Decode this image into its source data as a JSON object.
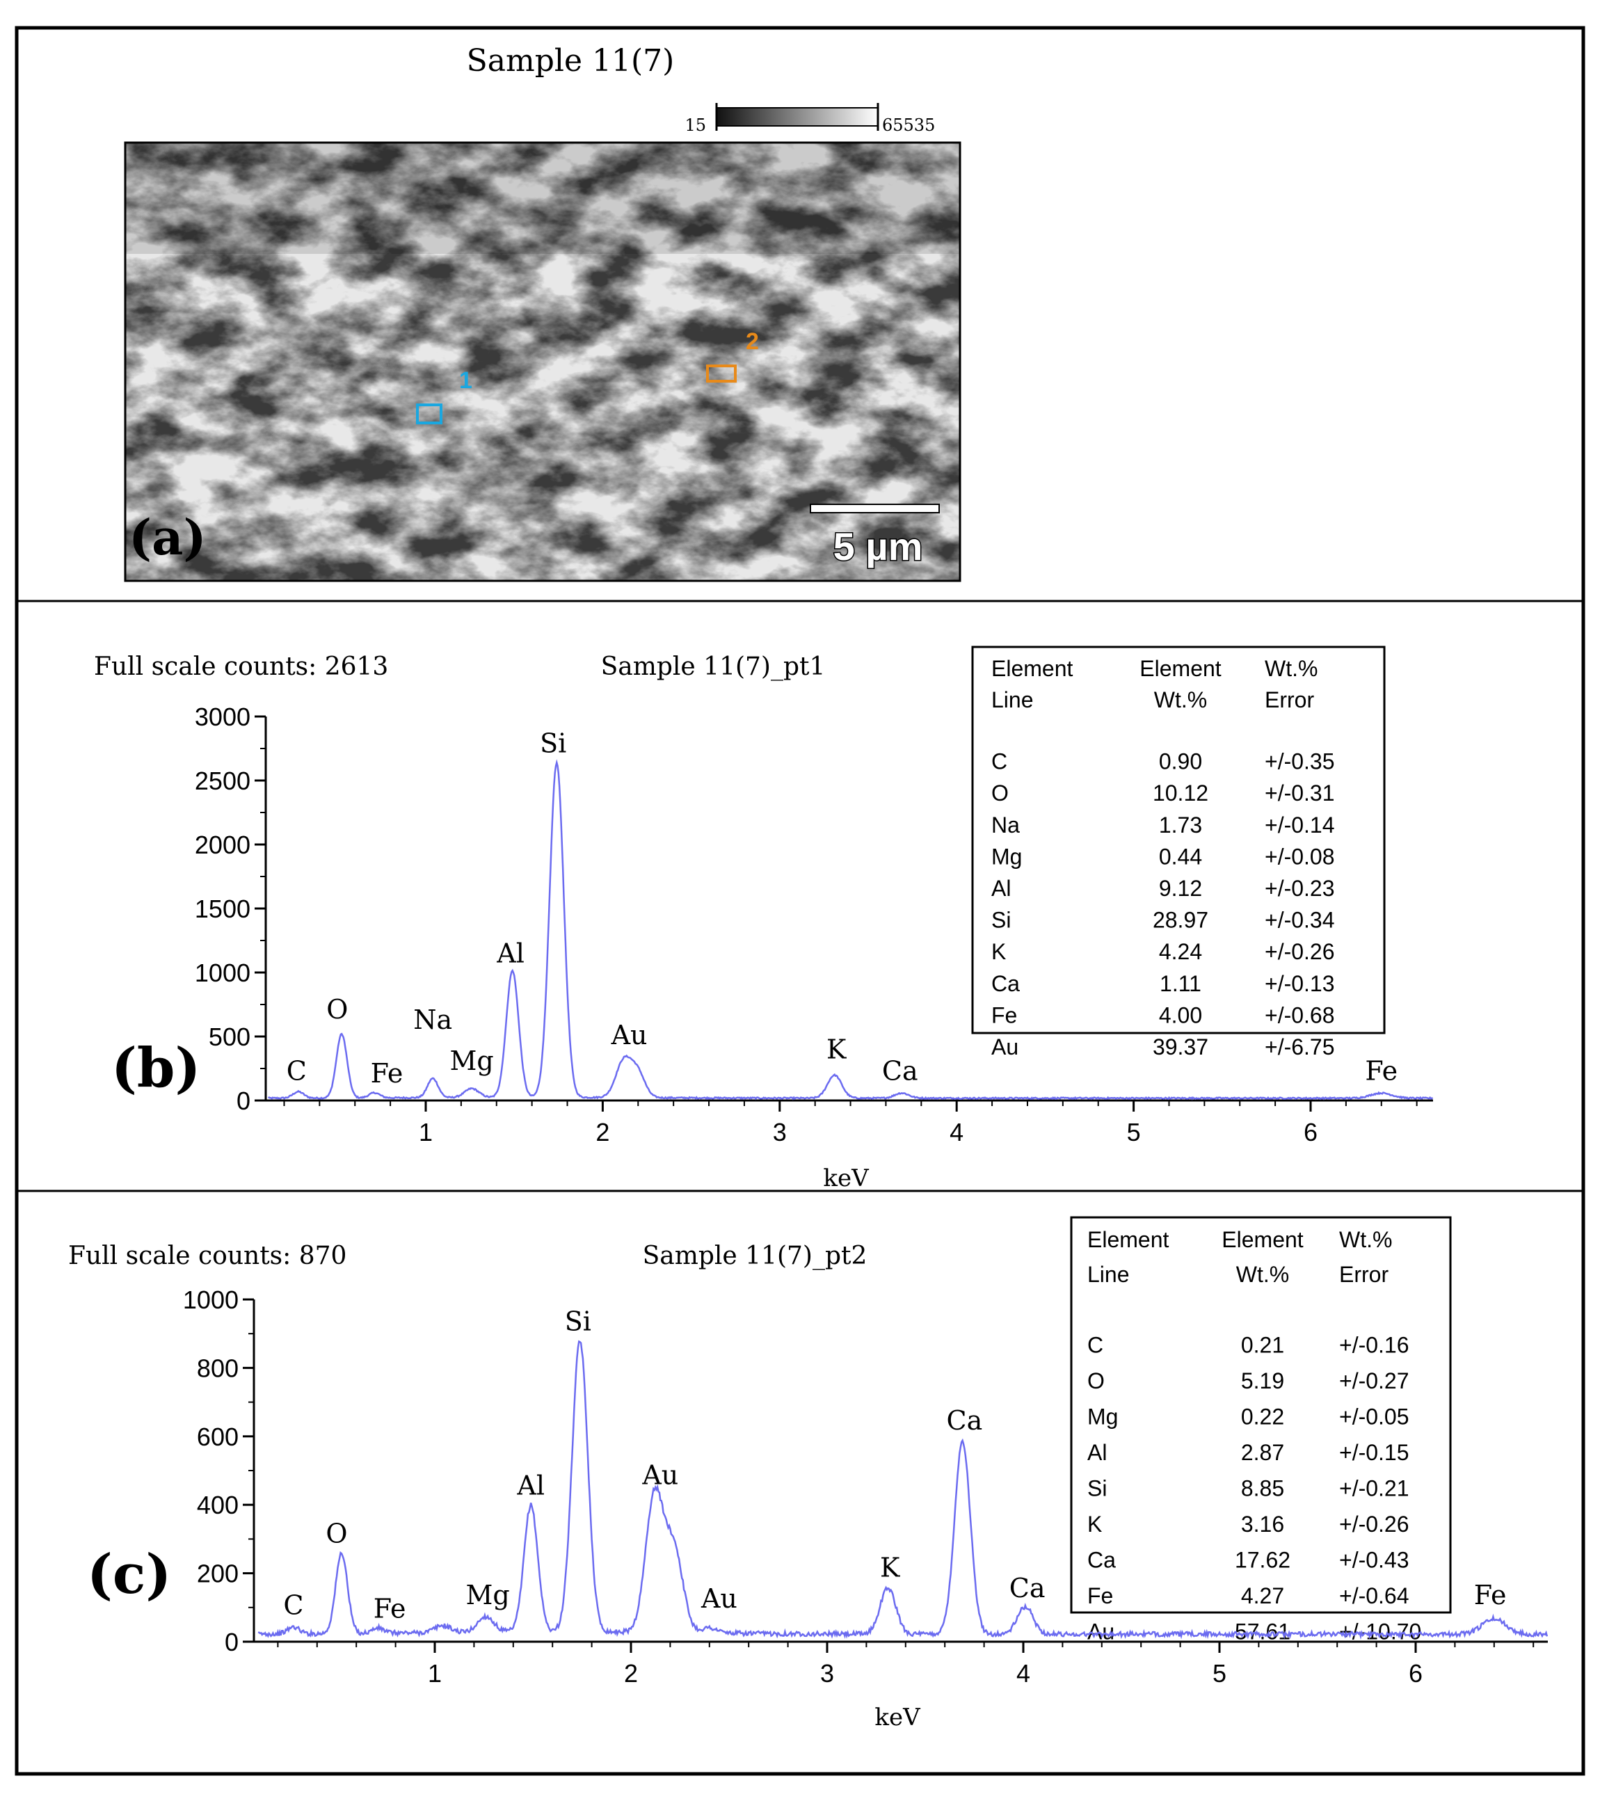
{
  "panel_a": {
    "title": "Sample 11(7)",
    "colorbar_min": "15",
    "colorbar_max": "65535",
    "panel_label": "(a)",
    "scale_bar_label": "5 µm",
    "markers": [
      {
        "label": "1",
        "color": "#1aa7e0"
      },
      {
        "label": "2",
        "color": "#e88a1a"
      }
    ]
  },
  "chart_data": [
    {
      "type": "line",
      "panel_label": "(b)",
      "title": "Sample 11(7)_pt1",
      "full_scale_text": "Full scale counts: 2613",
      "xlabel": "keV",
      "ylabel": "",
      "xlim": [
        0.1,
        6.7
      ],
      "ylim": [
        0,
        3000
      ],
      "x_ticks": [
        1,
        2,
        3,
        4,
        5,
        6
      ],
      "y_ticks": [
        0,
        500,
        1000,
        1500,
        2000,
        2500,
        3000
      ],
      "line_color": "#6b6bf0",
      "series": [
        {
          "peaks": [
            {
              "x": 0.28,
              "y": 50,
              "w": 0.03
            },
            {
              "x": 0.525,
              "y": 500,
              "w": 0.03
            },
            {
              "x": 0.71,
              "y": 40,
              "w": 0.03
            },
            {
              "x": 1.04,
              "y": 150,
              "w": 0.03
            },
            {
              "x": 1.26,
              "y": 70,
              "w": 0.04
            },
            {
              "x": 1.49,
              "y": 990,
              "w": 0.035
            },
            {
              "x": 1.74,
              "y": 2613,
              "w": 0.04
            },
            {
              "x": 2.12,
              "y": 290,
              "w": 0.045
            },
            {
              "x": 2.2,
              "y": 180,
              "w": 0.04
            },
            {
              "x": 3.31,
              "y": 180,
              "w": 0.04
            },
            {
              "x": 3.69,
              "y": 40,
              "w": 0.04
            },
            {
              "x": 6.4,
              "y": 40,
              "w": 0.06
            }
          ],
          "baseline": 18
        }
      ],
      "annotations": [
        {
          "text": "C",
          "x": 0.27,
          "y": 160
        },
        {
          "text": "O",
          "x": 0.5,
          "y": 640
        },
        {
          "text": "Fe",
          "x": 0.78,
          "y": 140
        },
        {
          "text": "Na",
          "x": 1.04,
          "y": 560
        },
        {
          "text": "Mg",
          "x": 1.26,
          "y": 240
        },
        {
          "text": "Al",
          "x": 1.48,
          "y": 1080
        },
        {
          "text": "Si",
          "x": 1.72,
          "y": 2720
        },
        {
          "text": "Au",
          "x": 2.15,
          "y": 440
        },
        {
          "text": "K",
          "x": 3.32,
          "y": 330
        },
        {
          "text": "Ca",
          "x": 3.68,
          "y": 160
        },
        {
          "text": "Fe",
          "x": 6.4,
          "y": 160
        }
      ],
      "table": {
        "headers": [
          [
            "Element",
            "Line"
          ],
          [
            "Element",
            "Wt.%"
          ],
          [
            "Wt.%",
            "Error"
          ]
        ],
        "rows": [
          [
            "C",
            "0.90",
            "+/-0.35"
          ],
          [
            "O",
            "10.12",
            "+/-0.31"
          ],
          [
            "Na",
            "1.73",
            "+/-0.14"
          ],
          [
            "Mg",
            "0.44",
            "+/-0.08"
          ],
          [
            "Al",
            "9.12",
            "+/-0.23"
          ],
          [
            "Si",
            "28.97",
            "+/-0.34"
          ],
          [
            "K",
            "4.24",
            "+/-0.26"
          ],
          [
            "Ca",
            "1.11",
            "+/-0.13"
          ],
          [
            "Fe",
            "4.00",
            "+/-0.68"
          ],
          [
            "Au",
            "39.37",
            "+/-6.75"
          ]
        ]
      }
    },
    {
      "type": "line",
      "panel_label": "(c)",
      "title": "Sample 11(7)_pt2",
      "full_scale_text": "Full scale counts: 870",
      "xlabel": "keV",
      "ylabel": "",
      "xlim": [
        0.1,
        6.7
      ],
      "ylim": [
        0,
        1000
      ],
      "x_ticks": [
        1,
        2,
        3,
        4,
        5,
        6
      ],
      "y_ticks": [
        0,
        200,
        400,
        600,
        800,
        1000
      ],
      "line_color": "#6b6bf0",
      "series": [
        {
          "peaks": [
            {
              "x": 0.28,
              "y": 20,
              "w": 0.03
            },
            {
              "x": 0.525,
              "y": 235,
              "w": 0.03
            },
            {
              "x": 0.71,
              "y": 15,
              "w": 0.03
            },
            {
              "x": 1.04,
              "y": 20,
              "w": 0.04
            },
            {
              "x": 1.26,
              "y": 45,
              "w": 0.04
            },
            {
              "x": 1.49,
              "y": 370,
              "w": 0.035
            },
            {
              "x": 1.74,
              "y": 850,
              "w": 0.04
            },
            {
              "x": 2.12,
              "y": 400,
              "w": 0.045
            },
            {
              "x": 2.22,
              "y": 240,
              "w": 0.045
            },
            {
              "x": 2.4,
              "y": 15,
              "w": 0.04
            },
            {
              "x": 3.31,
              "y": 135,
              "w": 0.04
            },
            {
              "x": 3.69,
              "y": 565,
              "w": 0.04
            },
            {
              "x": 4.01,
              "y": 80,
              "w": 0.04
            },
            {
              "x": 6.4,
              "y": 45,
              "w": 0.06
            }
          ],
          "baseline": 22
        }
      ],
      "annotations": [
        {
          "text": "C",
          "x": 0.28,
          "y": 80
        },
        {
          "text": "O",
          "x": 0.5,
          "y": 290
        },
        {
          "text": "Fe",
          "x": 0.77,
          "y": 70
        },
        {
          "text": "Mg",
          "x": 1.27,
          "y": 110
        },
        {
          "text": "Al",
          "x": 1.49,
          "y": 430
        },
        {
          "text": "Si",
          "x": 1.73,
          "y": 910
        },
        {
          "text": "Au",
          "x": 2.15,
          "y": 460
        },
        {
          "text": "Au",
          "x": 2.45,
          "y": 100
        },
        {
          "text": "K",
          "x": 3.32,
          "y": 190
        },
        {
          "text": "Ca",
          "x": 3.7,
          "y": 620
        },
        {
          "text": "Ca",
          "x": 4.02,
          "y": 130
        },
        {
          "text": "Fe",
          "x": 6.38,
          "y": 110
        }
      ],
      "table": {
        "headers": [
          [
            "Element",
            "Line"
          ],
          [
            "Element",
            "Wt.%"
          ],
          [
            "Wt.%",
            "Error"
          ]
        ],
        "rows": [
          [
            "C",
            "0.21",
            "+/-0.16"
          ],
          [
            "O",
            "5.19",
            "+/-0.27"
          ],
          [
            "Mg",
            "0.22",
            "+/-0.05"
          ],
          [
            "Al",
            "2.87",
            "+/-0.15"
          ],
          [
            "Si",
            "8.85",
            "+/-0.21"
          ],
          [
            "K",
            "3.16",
            "+/-0.26"
          ],
          [
            "Ca",
            "17.62",
            "+/-0.43"
          ],
          [
            "Fe",
            "4.27",
            "+/-0.64"
          ],
          [
            "Au",
            "57.61",
            "+/-10.70"
          ]
        ]
      }
    }
  ]
}
